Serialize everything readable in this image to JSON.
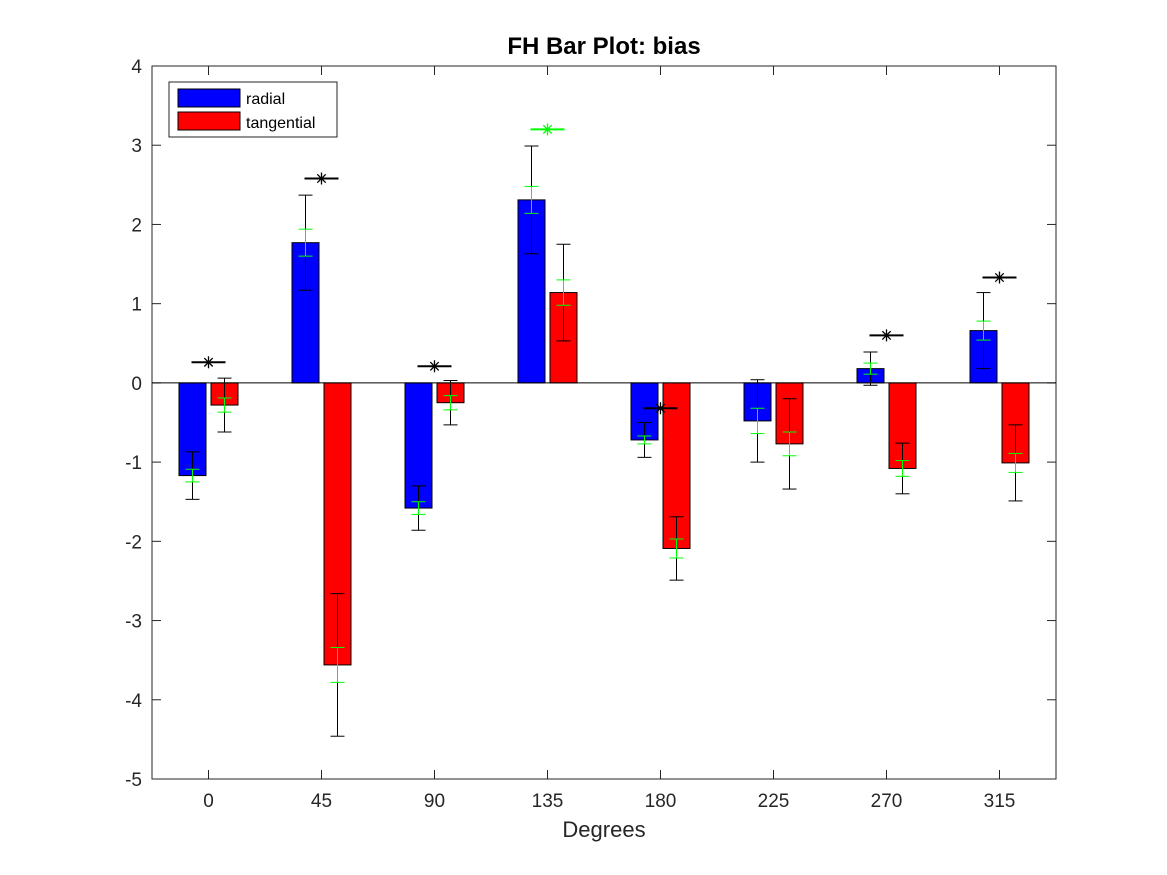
{
  "chart_data": {
    "type": "bar",
    "title": "FH Bar Plot: bias",
    "xlabel": "Degrees",
    "ylabel": "",
    "categories": [
      "0",
      "45",
      "90",
      "135",
      "180",
      "225",
      "270",
      "315"
    ],
    "ylim": [
      -5,
      4
    ],
    "yticks": [
      -5,
      -4,
      -3,
      -2,
      -1,
      0,
      1,
      2,
      3,
      4
    ],
    "grid": false,
    "legend_position": "top-left",
    "series": [
      {
        "name": "radial",
        "color": "#0000ff",
        "values": [
          -1.17,
          1.77,
          -1.58,
          2.31,
          -0.72,
          -0.48,
          0.18,
          0.66
        ],
        "error_black": [
          0.3,
          0.6,
          0.28,
          0.68,
          0.22,
          0.52,
          0.21,
          0.48
        ],
        "error_green": [
          0.08,
          0.17,
          0.08,
          0.17,
          0.05,
          0.16,
          0.07,
          0.12
        ]
      },
      {
        "name": "tangential",
        "color": "#ff0000",
        "values": [
          -0.28,
          -3.56,
          -0.25,
          1.14,
          -2.09,
          -0.77,
          -1.08,
          -1.01
        ],
        "error_black": [
          0.34,
          0.9,
          0.28,
          0.61,
          0.4,
          0.57,
          0.32,
          0.48
        ],
        "error_green": [
          0.09,
          0.22,
          0.09,
          0.16,
          0.12,
          0.15,
          0.1,
          0.12
        ]
      }
    ],
    "significance_markers": [
      {
        "category": "0",
        "y": 0.26,
        "color": "#000000"
      },
      {
        "category": "45",
        "y": 2.58,
        "color": "#000000"
      },
      {
        "category": "90",
        "y": 0.21,
        "color": "#000000"
      },
      {
        "category": "135",
        "y": 3.2,
        "color": "#00ff00"
      },
      {
        "category": "180",
        "y": -0.32,
        "color": "#000000"
      },
      {
        "category": "270",
        "y": 0.6,
        "color": "#000000"
      },
      {
        "category": "315",
        "y": 1.33,
        "color": "#000000"
      }
    ]
  }
}
